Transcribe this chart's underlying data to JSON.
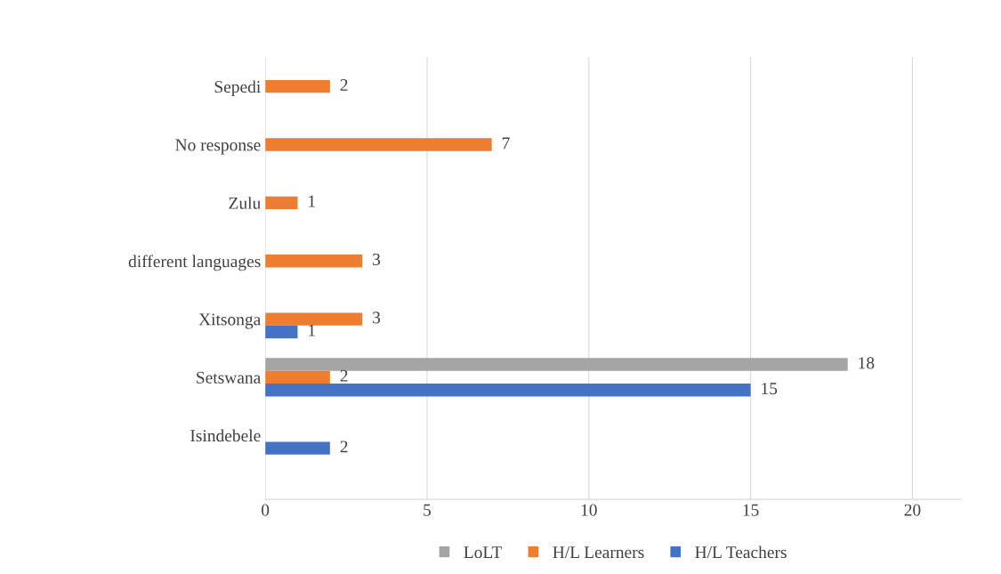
{
  "chart_data": {
    "type": "bar",
    "orientation": "horizontal",
    "categories": [
      "Sepedi",
      "No response",
      "Zulu",
      "different languages",
      "Xitsonga",
      "Setswana",
      "Isindebele"
    ],
    "series": [
      {
        "name": "LoLT",
        "color": "#a5a5a5",
        "values": [
          null,
          null,
          null,
          null,
          null,
          18,
          null
        ]
      },
      {
        "name": "H/L Learners",
        "color": "#ed7d31",
        "values": [
          2,
          7,
          1,
          3,
          3,
          2,
          null
        ]
      },
      {
        "name": "H/L Teachers",
        "color": "#4472c4",
        "values": [
          null,
          null,
          null,
          null,
          1,
          15,
          2
        ]
      }
    ],
    "xlim": [
      0,
      21.5
    ],
    "xticks": [
      0,
      5,
      10,
      15,
      20
    ],
    "grid": "x",
    "legend": "bottom",
    "data_labels": true
  }
}
